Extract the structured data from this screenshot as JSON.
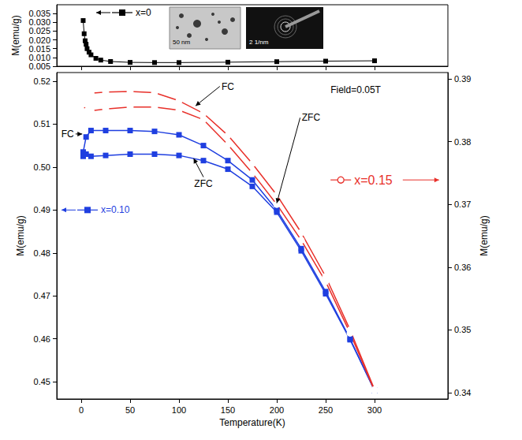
{
  "chart_data": [
    {
      "type": "line",
      "ylabel": "M(emu/g)",
      "xlim": [
        -25,
        375
      ],
      "xticks": [
        0,
        50,
        100,
        150,
        200,
        250,
        300
      ],
      "ylim": [
        0.005,
        0.04
      ],
      "yticks": [
        0.005,
        {
          "value": 0.01,
          "label": "0.010"
        },
        0.015,
        {
          "value": 0.02,
          "label": "0.020"
        },
        0.025,
        {
          "value": 0.03,
          "label": "0.030"
        },
        0.035
      ],
      "tick_labels": "y",
      "grid": false,
      "annotations": [
        "50 nm",
        "2 1/nm"
      ],
      "series": [
        {
          "name": "x=0",
          "color": "#000000",
          "marker": "square",
          "line_style": "solid",
          "axis": "y",
          "x": [
            2,
            3,
            4,
            5,
            6,
            8,
            10,
            15,
            20,
            30,
            50,
            75,
            100,
            150,
            200,
            250,
            300
          ],
          "values": [
            0.031,
            0.0235,
            0.0195,
            0.0175,
            0.015,
            0.013,
            0.0115,
            0.0095,
            0.0085,
            0.0077,
            0.0072,
            0.0071,
            0.0071,
            0.0073,
            0.0076,
            0.0079,
            0.0081
          ]
        }
      ]
    },
    {
      "type": "line",
      "xlabel": "Temperature(K)",
      "ylabel": "M(emu/g)",
      "y2label": "M(emu/g)",
      "xlim": [
        -25,
        375
      ],
      "xticks": [
        0,
        50,
        100,
        150,
        200,
        250,
        300
      ],
      "ylim": [
        0.446,
        0.522
      ],
      "yticks": [
        0.45,
        0.46,
        0.47,
        0.48,
        0.49,
        {
          "value": 0.5,
          "label": "0.50"
        },
        0.51,
        0.52
      ],
      "y2lim": [
        0.339,
        0.391
      ],
      "y2ticks": [
        0.34,
        0.35,
        0.36,
        0.37,
        0.38,
        0.39
      ],
      "grid": false,
      "annotations": [
        "Field=0.05T"
      ],
      "series": [
        {
          "name": "x=0.10",
          "color": "#1f3fe0",
          "marker": "square",
          "line_style": "solid",
          "axis": "y",
          "curves": [
            {
              "label": "FC",
              "x": [
                2,
                5,
                10,
                25,
                50,
                75,
                100,
                125,
                150,
                175,
                200,
                225,
                250,
                275,
                300
              ],
              "values": [
                0.5035,
                0.507,
                0.5085,
                0.5085,
                0.5085,
                0.5083,
                0.5075,
                0.505,
                0.5015,
                0.497,
                0.49,
                0.481,
                0.471,
                0.46,
                0.448
              ]
            },
            {
              "label": "ZFC",
              "x": [
                2,
                5,
                10,
                25,
                50,
                75,
                100,
                125,
                150,
                175,
                200,
                225,
                250,
                275,
                300
              ],
              "values": [
                0.5025,
                0.503,
                0.5025,
                0.5027,
                0.503,
                0.503,
                0.5027,
                0.5015,
                0.4995,
                0.4955,
                0.4895,
                0.4805,
                0.4705,
                0.4598,
                0.448
              ]
            }
          ]
        },
        {
          "name": "x=0.15",
          "color": "#e8302a",
          "marker": "open circle",
          "line_style": "solid",
          "axis": "y2",
          "curves": [
            {
              "label": "FC",
              "x": [
                2,
                5,
                10,
                25,
                50,
                75,
                100,
                125,
                150,
                175,
                200,
                225,
                250,
                275,
                300
              ],
              "values": [
                0.3883,
                0.3876,
                0.3877,
                0.3879,
                0.388,
                0.3878,
                0.3865,
                0.3845,
                0.381,
                0.3765,
                0.3715,
                0.3655,
                0.3585,
                0.35,
                0.3405
              ]
            },
            {
              "label": "ZFC",
              "x": [
                2,
                5,
                10,
                25,
                50,
                75,
                100,
                125,
                150,
                175,
                200,
                225,
                250,
                275,
                300
              ],
              "values": [
                0.386,
                0.3848,
                0.3849,
                0.3852,
                0.3855,
                0.3855,
                0.385,
                0.3835,
                0.3795,
                0.375,
                0.37,
                0.3643,
                0.3577,
                0.3495,
                0.3403
              ]
            }
          ]
        }
      ]
    }
  ]
}
